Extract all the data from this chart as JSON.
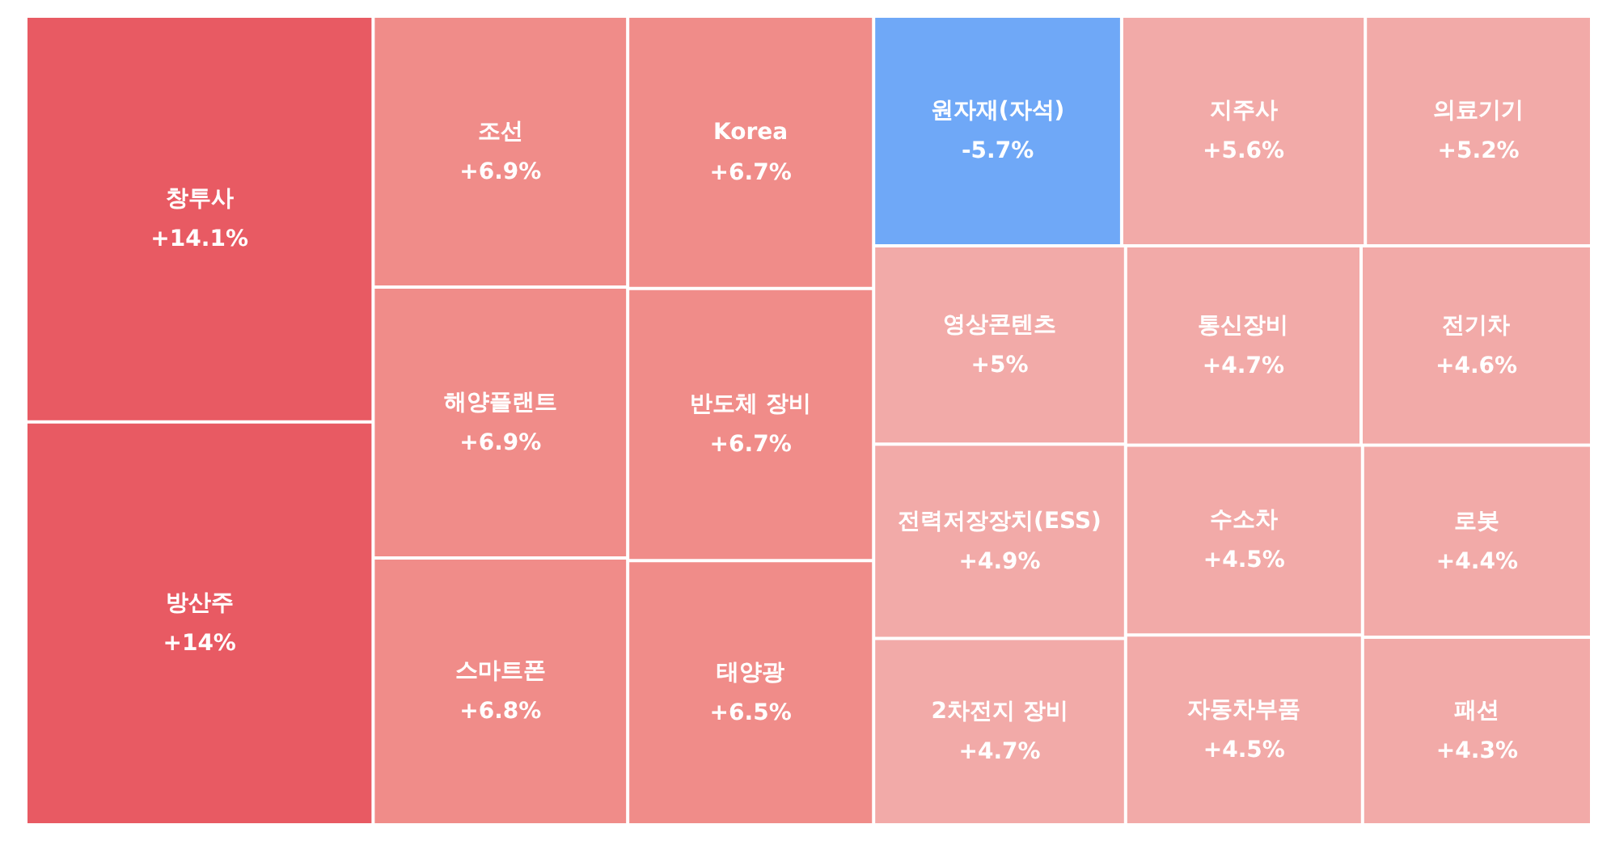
{
  "chart_data": {
    "type": "other",
    "categories": [
      "창투사",
      "방산주",
      "조선",
      "해양플랜트",
      "스마트폰",
      "Korea",
      "반도체 장비",
      "태양광",
      "원자재(자석)",
      "지주사",
      "의료기기",
      "영상콘텐츠",
      "전력저장장치(ESS)",
      "2차전지 장비",
      "통신장비",
      "전기차",
      "수소차",
      "자동차부품",
      "로봇",
      "패션"
    ],
    "values": [
      14.1,
      14,
      6.9,
      6.9,
      6.8,
      6.7,
      6.7,
      6.5,
      -5.7,
      5.6,
      5.2,
      5,
      4.9,
      4.7,
      4.7,
      4.6,
      4.5,
      4.5,
      4.4,
      4.3
    ],
    "value_labels": [
      "+14.1%",
      "+14%",
      "+6.9%",
      "+6.9%",
      "+6.8%",
      "+6.7%",
      "+6.7%",
      "+6.5%",
      "-5.7%",
      "+5.6%",
      "+5.2%",
      "+5%",
      "+4.9%",
      "+4.7%",
      "+4.7%",
      "+4.6%",
      "+4.5%",
      "+4.5%",
      "+4.4%",
      "+4.3%"
    ],
    "colors": [
      "#e85a63",
      "#e85a63",
      "#f08c89",
      "#f08c89",
      "#f08c89",
      "#f08c89",
      "#f08c89",
      "#f08c89",
      "#6fa8f7",
      "#f2aaa8",
      "#f2aaa8",
      "#f2aaa8",
      "#f2aaa8",
      "#f2aaa8",
      "#f2aaa8",
      "#f2aaa8",
      "#f2aaa8",
      "#f2aaa8",
      "#f2aaa8",
      "#f2aaa8"
    ]
  }
}
